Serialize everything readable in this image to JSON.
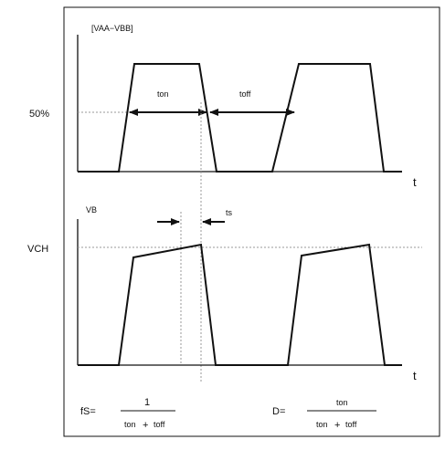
{
  "top_signal_label": "[VAA−VBB]",
  "pct_label": "50%",
  "ton_label": "ton",
  "toff_label": "toff",
  "time_axis_label": "t",
  "bottom_signal_label": "VB",
  "vout_label": "VCH",
  "ts_label": "ts",
  "formula_f": {
    "lhs": "fS=",
    "num": "1",
    "den_a": "ton",
    "plus": "+",
    "den_b": "toff"
  },
  "formula_d": {
    "lhs": "D=",
    "num": "ton",
    "den_a": "ton",
    "plus": "+",
    "den_b": "toff"
  }
}
